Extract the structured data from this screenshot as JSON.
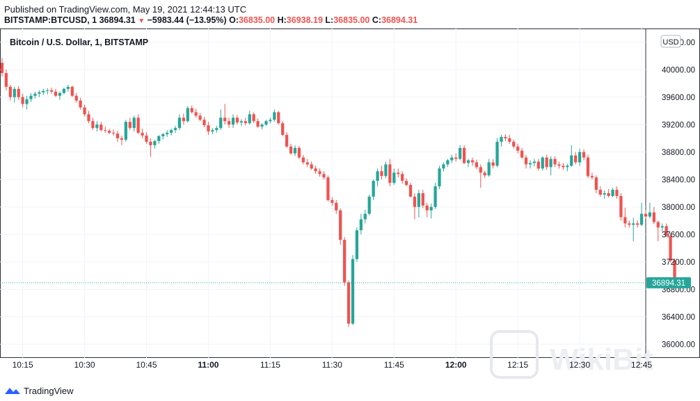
{
  "header": {
    "published": "Published on TradingView.com, May 19, 2021 12:44:13 UTC",
    "symbol": "BITSTAMP:BTCUSD, 1",
    "last": "36894.31",
    "change": "−5983.44 (−13.95%)",
    "o_label": "O:",
    "o_value": "36835.00",
    "h_label": "H:",
    "h_value": "36938.19",
    "l_label": "L:",
    "l_value": "36835.00",
    "c_label": "C:",
    "c_value": "36894.31"
  },
  "footer": {
    "brand": "TradingView"
  },
  "watermark": "WikiBit",
  "colors": {
    "up": "#26a69a",
    "down": "#ef5350",
    "grid": "#f0f3fa",
    "axis_text": "#131722",
    "price_label_bg": "#26a69a"
  },
  "chart_data": {
    "type": "candlestick",
    "title": "Bitcoin / U.S. Dollar, 1, BITSTAMP",
    "currency": "USD",
    "x_ticks": [
      {
        "label": "10:15",
        "minute": 15,
        "bold": false
      },
      {
        "label": "10:30",
        "minute": 30,
        "bold": false
      },
      {
        "label": "10:45",
        "minute": 45,
        "bold": false
      },
      {
        "label": "11:00",
        "minute": 60,
        "bold": true
      },
      {
        "label": "11:15",
        "minute": 75,
        "bold": false
      },
      {
        "label": "11:30",
        "minute": 90,
        "bold": false
      },
      {
        "label": "11:45",
        "minute": 105,
        "bold": false
      },
      {
        "label": "12:00",
        "minute": 120,
        "bold": true
      },
      {
        "label": "12:15",
        "minute": 135,
        "bold": false
      },
      {
        "label": "12:30",
        "minute": 150,
        "bold": false
      },
      {
        "label": "12:45",
        "minute": 165,
        "bold": false
      }
    ],
    "x_domain_minutes": [
      9.5,
      166
    ],
    "y_ticks": [
      36000,
      36400,
      36800,
      37200,
      37600,
      38000,
      38400,
      38800,
      39200,
      39600,
      40000,
      40400
    ],
    "y_range": [
      35800,
      40600
    ],
    "last_price": 36894.31,
    "candles": [
      [
        40100,
        40170,
        39900,
        39950
      ],
      [
        39950,
        40000,
        39700,
        39750
      ],
      [
        39750,
        39780,
        39550,
        39600
      ],
      [
        39600,
        39750,
        39520,
        39720
      ],
      [
        39720,
        39760,
        39560,
        39600
      ],
      [
        39600,
        39650,
        39450,
        39500
      ],
      [
        39500,
        39620,
        39420,
        39570
      ],
      [
        39570,
        39660,
        39530,
        39620
      ],
      [
        39620,
        39680,
        39580,
        39650
      ],
      [
        39650,
        39700,
        39600,
        39670
      ],
      [
        39670,
        39720,
        39630,
        39690
      ],
      [
        39690,
        39730,
        39640,
        39700
      ],
      [
        39700,
        39740,
        39650,
        39680
      ],
      [
        39680,
        39720,
        39600,
        39620
      ],
      [
        39620,
        39680,
        39560,
        39660
      ],
      [
        39660,
        39740,
        39640,
        39720
      ],
      [
        39720,
        39780,
        39680,
        39750
      ],
      [
        39750,
        39770,
        39600,
        39620
      ],
      [
        39620,
        39660,
        39520,
        39550
      ],
      [
        39550,
        39590,
        39420,
        39450
      ],
      [
        39450,
        39490,
        39320,
        39350
      ],
      [
        39350,
        39400,
        39220,
        39250
      ],
      [
        39250,
        39300,
        39120,
        39150
      ],
      [
        39150,
        39250,
        39100,
        39200
      ],
      [
        39200,
        39240,
        39100,
        39120
      ],
      [
        39120,
        39170,
        39080,
        39110
      ],
      [
        39110,
        39140,
        39060,
        39080
      ],
      [
        39080,
        39130,
        39040,
        39070
      ],
      [
        39070,
        39110,
        38950,
        39000
      ],
      [
        39000,
        39040,
        38900,
        38980
      ],
      [
        38980,
        39270,
        38950,
        39240
      ],
      [
        39240,
        39300,
        39120,
        39150
      ],
      [
        39150,
        39330,
        39100,
        39300
      ],
      [
        39300,
        39350,
        39060,
        39080
      ],
      [
        39080,
        39140,
        39000,
        39040
      ],
      [
        39040,
        39090,
        38920,
        38950
      ],
      [
        38950,
        39000,
        38730,
        38900
      ],
      [
        38900,
        38980,
        38850,
        38960
      ],
      [
        38960,
        39050,
        38920,
        39030
      ],
      [
        39030,
        39080,
        38980,
        39060
      ],
      [
        39060,
        39120,
        39020,
        39080
      ],
      [
        39080,
        39140,
        39040,
        39120
      ],
      [
        39120,
        39180,
        39080,
        39150
      ],
      [
        39150,
        39350,
        39120,
        39300
      ],
      [
        39300,
        39360,
        39200,
        39250
      ],
      [
        39250,
        39470,
        39230,
        39440
      ],
      [
        39440,
        39480,
        39360,
        39380
      ],
      [
        39380,
        39430,
        39300,
        39330
      ],
      [
        39330,
        39370,
        39250,
        39270
      ],
      [
        39270,
        39310,
        39160,
        39190
      ],
      [
        39190,
        39240,
        39050,
        39100
      ],
      [
        39100,
        39150,
        39060,
        39120
      ],
      [
        39120,
        39180,
        39080,
        39150
      ],
      [
        39150,
        39420,
        39120,
        39300
      ],
      [
        39300,
        39500,
        39200,
        39250
      ],
      [
        39250,
        39300,
        39150,
        39200
      ],
      [
        39200,
        39350,
        39150,
        39300
      ],
      [
        39300,
        39340,
        39200,
        39230
      ],
      [
        39230,
        39280,
        39180,
        39250
      ],
      [
        39250,
        39300,
        39190,
        39220
      ],
      [
        39220,
        39400,
        39200,
        39350
      ],
      [
        39350,
        39380,
        39220,
        39250
      ],
      [
        39250,
        39290,
        39150,
        39170
      ],
      [
        39170,
        39220,
        39130,
        39200
      ],
      [
        39200,
        39270,
        39180,
        39250
      ],
      [
        39250,
        39300,
        39220,
        39270
      ],
      [
        39270,
        39420,
        39240,
        39380
      ],
      [
        39380,
        39400,
        39200,
        39220
      ],
      [
        39220,
        39250,
        39030,
        39050
      ],
      [
        39050,
        39090,
        38860,
        38880
      ],
      [
        38880,
        38920,
        38760,
        38780
      ],
      [
        38780,
        38900,
        38740,
        38860
      ],
      [
        38860,
        38890,
        38700,
        38720
      ],
      [
        38720,
        38760,
        38620,
        38650
      ],
      [
        38650,
        38700,
        38580,
        38620
      ],
      [
        38620,
        38660,
        38540,
        38560
      ],
      [
        38560,
        38600,
        38480,
        38520
      ],
      [
        38520,
        38560,
        38440,
        38480
      ],
      [
        38480,
        38520,
        38400,
        38430
      ],
      [
        38430,
        38460,
        38080,
        38100
      ],
      [
        38100,
        38140,
        38020,
        38060
      ],
      [
        38060,
        38100,
        37900,
        37950
      ],
      [
        37950,
        37980,
        37450,
        37520
      ],
      [
        37520,
        37560,
        36850,
        36900
      ],
      [
        36900,
        36930,
        36250,
        36300
      ],
      [
        36300,
        37300,
        36280,
        37240
      ],
      [
        37240,
        37700,
        37200,
        37660
      ],
      [
        37660,
        37900,
        37600,
        37820
      ],
      [
        37820,
        37960,
        37760,
        37900
      ],
      [
        37900,
        38180,
        37880,
        38150
      ],
      [
        38150,
        38400,
        38100,
        38380
      ],
      [
        38380,
        38560,
        38300,
        38520
      ],
      [
        38520,
        38600,
        38400,
        38450
      ],
      [
        38450,
        38660,
        38420,
        38620
      ],
      [
        38620,
        38700,
        38300,
        38350
      ],
      [
        38350,
        38560,
        38320,
        38500
      ],
      [
        38500,
        38560,
        38430,
        38480
      ],
      [
        38480,
        38520,
        38340,
        38380
      ],
      [
        38380,
        38420,
        38300,
        38320
      ],
      [
        38320,
        38350,
        38140,
        38150
      ],
      [
        38150,
        38200,
        37820,
        38000
      ],
      [
        38000,
        38250,
        37850,
        38200
      ],
      [
        38200,
        38250,
        37980,
        38020
      ],
      [
        38020,
        38060,
        37850,
        37950
      ],
      [
        37950,
        38050,
        37830,
        38000
      ],
      [
        38000,
        38350,
        37970,
        38300
      ],
      [
        38300,
        38600,
        38260,
        38560
      ],
      [
        38560,
        38650,
        38520,
        38620
      ],
      [
        38620,
        38700,
        38580,
        38680
      ],
      [
        38680,
        38760,
        38640,
        38720
      ],
      [
        38720,
        38780,
        38660,
        38700
      ],
      [
        38700,
        38900,
        38680,
        38860
      ],
      [
        38860,
        38900,
        38620,
        38640
      ],
      [
        38640,
        38700,
        38580,
        38680
      ],
      [
        38680,
        38720,
        38600,
        38650
      ],
      [
        38650,
        38690,
        38550,
        38580
      ],
      [
        38580,
        38620,
        38280,
        38500
      ],
      [
        38500,
        38530,
        38420,
        38460
      ],
      [
        38460,
        38700,
        38440,
        38650
      ],
      [
        38650,
        38700,
        38560,
        38600
      ],
      [
        38600,
        39000,
        38580,
        38950
      ],
      [
        38950,
        39050,
        38880,
        39020
      ],
      [
        39020,
        39060,
        38960,
        39000
      ],
      [
        39000,
        39050,
        38920,
        38950
      ],
      [
        38950,
        38980,
        38850,
        38880
      ],
      [
        38880,
        38920,
        38780,
        38820
      ],
      [
        38820,
        38860,
        38700,
        38720
      ],
      [
        38720,
        38760,
        38560,
        38620
      ],
      [
        38620,
        38680,
        38560,
        38640
      ],
      [
        38640,
        38700,
        38590,
        38660
      ],
      [
        38660,
        38700,
        38530,
        38560
      ],
      [
        38560,
        38740,
        38530,
        38720
      ],
      [
        38720,
        38760,
        38540,
        38580
      ],
      [
        38580,
        38740,
        38460,
        38700
      ],
      [
        38700,
        38740,
        38580,
        38620
      ],
      [
        38620,
        38660,
        38560,
        38600
      ],
      [
        38600,
        38640,
        38540,
        38580
      ],
      [
        38580,
        38630,
        38520,
        38600
      ],
      [
        38600,
        38900,
        38580,
        38750
      ],
      [
        38750,
        38800,
        38620,
        38650
      ],
      [
        38650,
        38850,
        38600,
        38800
      ],
      [
        38800,
        38840,
        38680,
        38720
      ],
      [
        38720,
        38760,
        38420,
        38450
      ],
      [
        38450,
        38500,
        38400,
        38430
      ],
      [
        38430,
        38460,
        38200,
        38250
      ],
      [
        38250,
        38300,
        38150,
        38180
      ],
      [
        38180,
        38240,
        38120,
        38200
      ],
      [
        38200,
        38260,
        38140,
        38160
      ],
      [
        38160,
        38280,
        38140,
        38250
      ],
      [
        38250,
        38300,
        38120,
        38160
      ],
      [
        38160,
        38200,
        37800,
        37850
      ],
      [
        37850,
        37990,
        37700,
        37760
      ],
      [
        37760,
        37800,
        37700,
        37740
      ],
      [
        37740,
        37840,
        37500,
        37760
      ],
      [
        37760,
        37800,
        37700,
        37740
      ],
      [
        37740,
        38060,
        37720,
        37900
      ],
      [
        37900,
        37960,
        37830,
        37860
      ],
      [
        37860,
        38060,
        37830,
        37920
      ],
      [
        37920,
        38000,
        37750,
        37780
      ],
      [
        37780,
        37800,
        37500,
        37700
      ],
      [
        37700,
        37760,
        37640,
        37720
      ],
      [
        37720,
        37760,
        37560,
        37580
      ],
      [
        37580,
        37620,
        37190,
        37220
      ],
      [
        37220,
        37250,
        36860,
        36880
      ],
      [
        36835,
        36938.19,
        36835,
        36894.31
      ]
    ]
  }
}
